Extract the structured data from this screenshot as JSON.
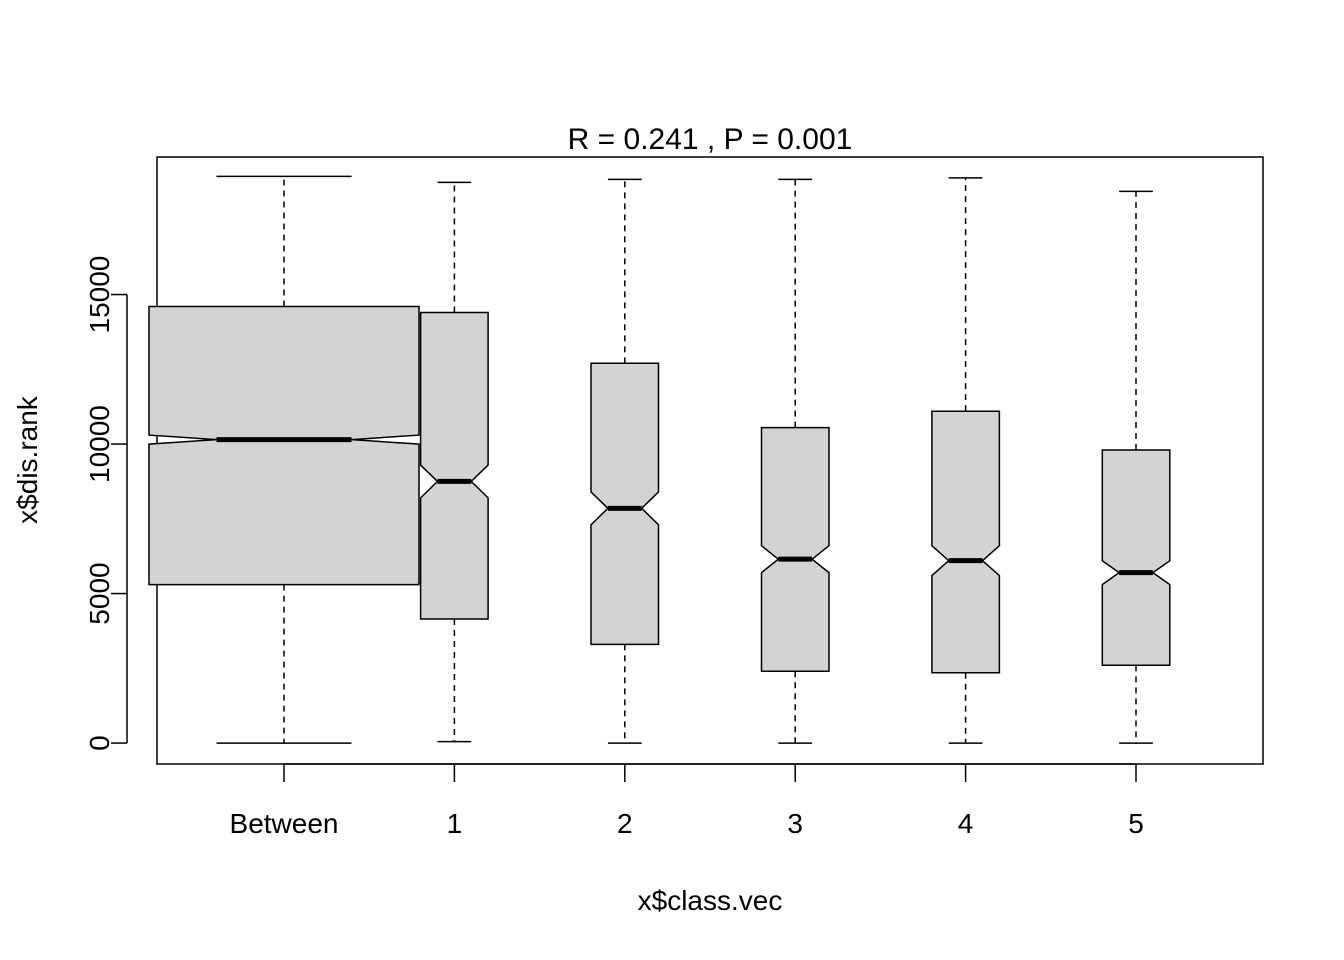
{
  "chart_data": {
    "type": "boxplot",
    "title": "R =  0.241 ,  P =  0.001",
    "xlabel": "x$class.vec",
    "ylabel": "x$dis.rank",
    "ylim": [
      -700,
      19600
    ],
    "yticks": [
      0,
      5000,
      10000,
      15000
    ],
    "yticklabels": [
      "0",
      "5000",
      "10000",
      "15000"
    ],
    "categories": [
      "Between",
      "1",
      "2",
      "3",
      "4",
      "5"
    ],
    "notch": true,
    "box_fill": "#d3d3d3",
    "boxes": [
      {
        "name": "Between",
        "min": 0,
        "q1": 5300,
        "median": 10150,
        "q3": 14600,
        "max": 18950,
        "notch_lo": 10000,
        "notch_hi": 10300,
        "width": 1.0
      },
      {
        "name": "1",
        "min": 50,
        "q1": 4150,
        "median": 8750,
        "q3": 14400,
        "max": 18750,
        "notch_lo": 8200,
        "notch_hi": 9300,
        "width": 0.25
      },
      {
        "name": "2",
        "min": 0,
        "q1": 3300,
        "median": 7850,
        "q3": 12700,
        "max": 18850,
        "notch_lo": 7300,
        "notch_hi": 8400,
        "width": 0.25
      },
      {
        "name": "3",
        "min": 0,
        "q1": 2400,
        "median": 6150,
        "q3": 10550,
        "max": 18850,
        "notch_lo": 5700,
        "notch_hi": 6600,
        "width": 0.25
      },
      {
        "name": "4",
        "min": 0,
        "q1": 2350,
        "median": 6100,
        "q3": 11100,
        "max": 18900,
        "notch_lo": 5600,
        "notch_hi": 6600,
        "width": 0.25
      },
      {
        "name": "5",
        "min": 0,
        "q1": 2600,
        "median": 5700,
        "q3": 9800,
        "max": 18450,
        "notch_lo": 5300,
        "notch_hi": 6100,
        "width": 0.25
      }
    ],
    "grid": false,
    "legend": "none"
  }
}
